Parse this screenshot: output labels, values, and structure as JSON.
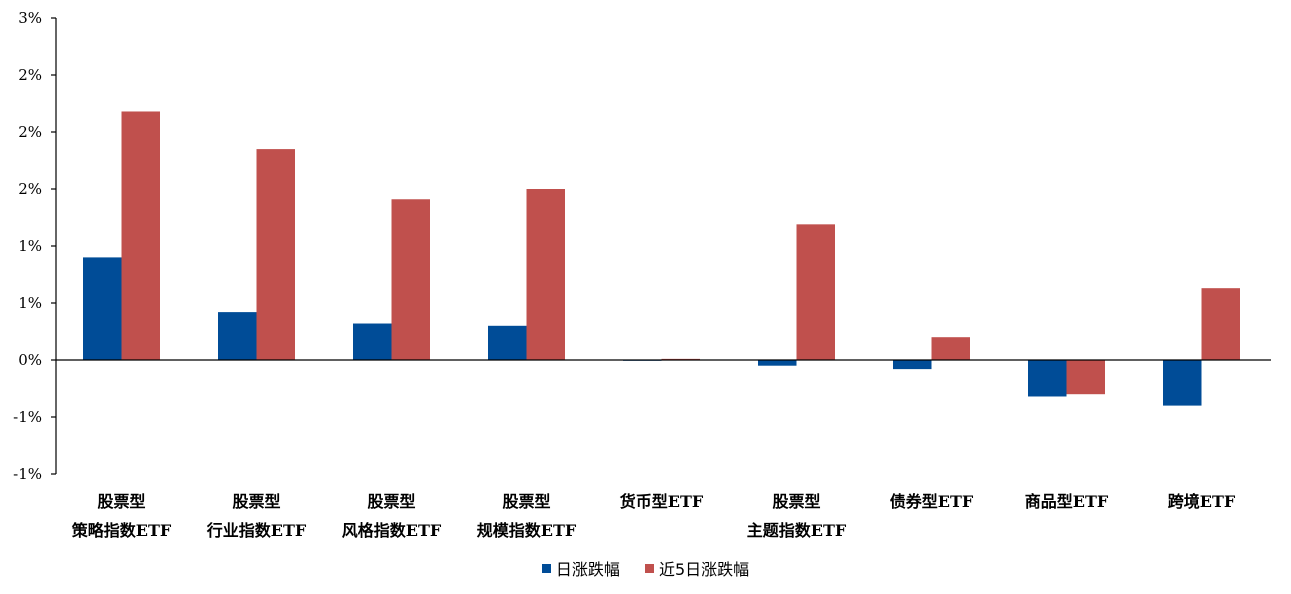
{
  "chart_data": {
    "type": "bar",
    "categories": [
      [
        "股票型",
        "策略指数ETF"
      ],
      [
        "股票型",
        "行业指数ETF"
      ],
      [
        "股票型",
        "风格指数ETF"
      ],
      [
        "股票型",
        "规模指数ETF"
      ],
      [
        "货币型ETF"
      ],
      [
        "股票型",
        "主题指数ETF"
      ],
      [
        "债券型ETF"
      ],
      [
        "商品型ETF"
      ],
      [
        "跨境ETF"
      ]
    ],
    "series": [
      {
        "name": "日涨跌幅",
        "color": "#004C97",
        "values": [
          0.9,
          0.42,
          0.32,
          0.3,
          0.0,
          -0.05,
          -0.08,
          -0.32,
          -0.4
        ]
      },
      {
        "name": "近5日涨跌幅",
        "color": "#C0504D",
        "values": [
          2.18,
          1.85,
          1.41,
          1.5,
          0.01,
          1.19,
          0.2,
          -0.3,
          0.63
        ]
      }
    ],
    "ylim": [
      -1.0,
      3.0
    ],
    "yticks": [
      -1.0,
      -0.5,
      0.0,
      0.5,
      1.0,
      1.5,
      2.0,
      2.5,
      3.0
    ],
    "ytick_labels": [
      "-1%",
      "-1%",
      "0%",
      "1%",
      "1%",
      "2%",
      "2%",
      "2%",
      "3%"
    ],
    "title": "",
    "xlabel": "",
    "ylabel": "",
    "legend_position": "bottom"
  }
}
